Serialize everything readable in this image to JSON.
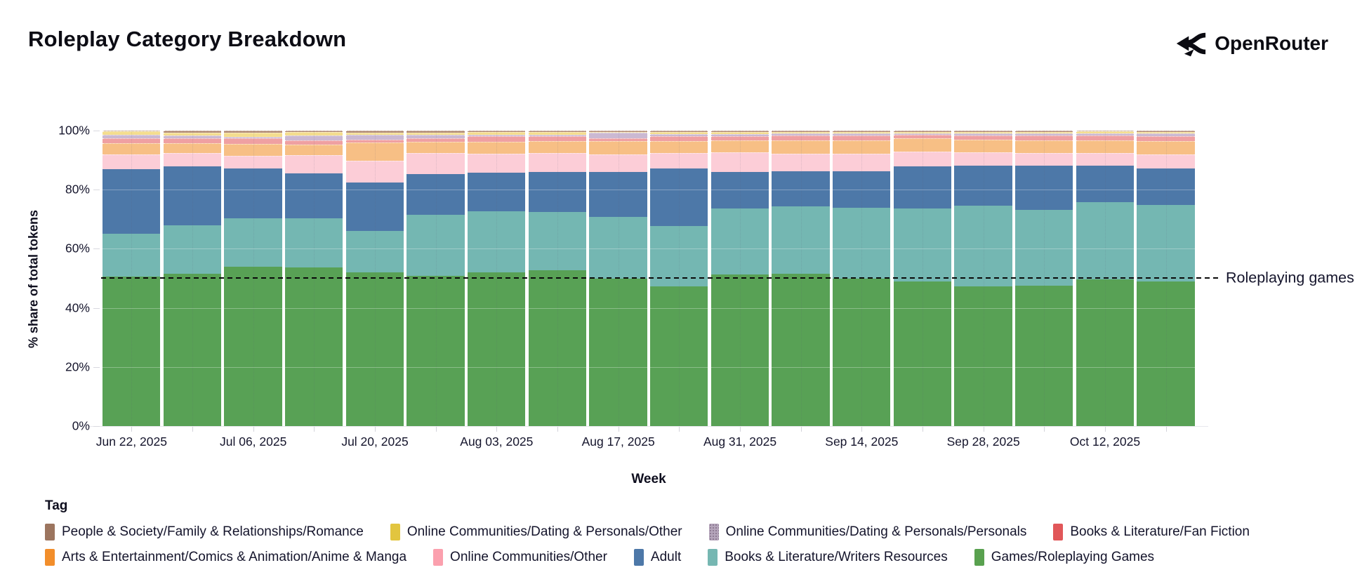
{
  "header": {
    "title": "Roleplay Category Breakdown",
    "brand": "OpenRouter"
  },
  "annotation": {
    "label": "Roleplaying games",
    "y": 50
  },
  "legend": {
    "title": "Tag",
    "rows": [
      [
        "romance",
        "dating_other",
        "dating_personals",
        "fan_fiction"
      ],
      [
        "anime_manga",
        "communities_other",
        "adult",
        "writers_resources",
        "roleplaying_games"
      ]
    ]
  },
  "chart_data": {
    "type": "bar",
    "stacked": true,
    "title": "Roleplay Category Breakdown",
    "xlabel": "Week",
    "ylabel": "% share of total tokens",
    "ylim": [
      0,
      100
    ],
    "y_ticks": [
      0,
      20,
      40,
      60,
      80,
      100
    ],
    "y_tick_labels": [
      "0%",
      "20%",
      "40%",
      "60%",
      "80%",
      "100%"
    ],
    "grid": "subtle-horizontal",
    "legend_position": "bottom",
    "annotation_line": {
      "value": 50,
      "style": "dashed",
      "label": "Roleplaying games"
    },
    "categories": [
      "Jun 22, 2025",
      "Jun 29, 2025",
      "Jul 06, 2025",
      "Jul 13, 2025",
      "Jul 20, 2025",
      "Jul 27, 2025",
      "Aug 03, 2025",
      "Aug 10, 2025",
      "Aug 17, 2025",
      "Aug 24, 2025",
      "Aug 31, 2025",
      "Sep 07, 2025",
      "Sep 14, 2025",
      "Sep 21, 2025",
      "Sep 28, 2025",
      "Oct 05, 2025",
      "Oct 12, 2025",
      "Oct 19, 2025"
    ],
    "x_axis_labeled_ticks": [
      "Jun 22, 2025",
      "Jul 06, 2025",
      "Jul 20, 2025",
      "Aug 03, 2025",
      "Aug 17, 2025",
      "Aug 31, 2025",
      "Sep 14, 2025",
      "Sep 28, 2025",
      "Oct 12, 2025"
    ],
    "series": [
      {
        "key": "roleplaying_games",
        "name": "Games/Roleplaying Games",
        "bar_color": "#58a155",
        "legend_color": "#59a14f",
        "thin": false,
        "values": [
          50.5,
          51.5,
          54.0,
          53.8,
          52.0,
          50.8,
          52.0,
          52.7,
          50.0,
          47.2,
          51.4,
          51.5,
          50.0,
          49.0,
          47.2,
          47.6,
          49.6,
          49.0
        ]
      },
      {
        "key": "writers_resources",
        "name": "Books & Literature/Writers Resources",
        "bar_color": "#74b7b2",
        "legend_color": "#76b7b2",
        "thin": false,
        "values": [
          14.5,
          16.5,
          16.2,
          16.6,
          14.0,
          20.7,
          20.8,
          19.8,
          20.7,
          20.6,
          22.3,
          22.8,
          23.9,
          24.7,
          27.5,
          25.6,
          26.2,
          25.8
        ]
      },
      {
        "key": "adult",
        "name": "Adult",
        "bar_color": "#4d78a8",
        "legend_color": "#4d78a8",
        "thin": false,
        "values": [
          22.0,
          19.8,
          17.0,
          15.1,
          16.4,
          13.8,
          13.0,
          13.6,
          15.3,
          19.4,
          12.4,
          11.9,
          12.4,
          14.1,
          13.4,
          14.9,
          12.3,
          12.4
        ]
      },
      {
        "key": "communities_other",
        "name": "Online Communities/Other",
        "bar_color": "#fccdd7",
        "legend_color": "#fba0ae",
        "thin": true,
        "values": [
          5.0,
          4.5,
          4.3,
          6.2,
          7.4,
          7.0,
          6.4,
          6.3,
          5.9,
          5.1,
          6.6,
          5.9,
          5.9,
          5.1,
          4.6,
          4.4,
          4.4,
          4.7
        ]
      },
      {
        "key": "anime_manga",
        "name": "Arts & Entertainment/Comics & Animation/Anime & Manga",
        "bar_color": "#f7bf85",
        "legend_color": "#f28e2b",
        "thin": true,
        "values": [
          3.7,
          3.4,
          4.0,
          3.5,
          6.1,
          4.0,
          4.1,
          4.1,
          4.6,
          4.2,
          4.1,
          4.6,
          4.6,
          4.4,
          4.3,
          4.2,
          4.3,
          4.6
        ]
      },
      {
        "key": "fan_fiction",
        "name": "Books & Literature/Fan Fiction",
        "bar_color": "#efa0a2",
        "legend_color": "#e15759",
        "thin": true,
        "values": [
          1.8,
          1.7,
          1.8,
          1.4,
          1.0,
          1.2,
          1.7,
          1.5,
          0.9,
          1.5,
          1.4,
          1.7,
          1.5,
          1.2,
          1.4,
          1.6,
          1.6,
          1.7
        ]
      },
      {
        "key": "dating_personals",
        "name": "Online Communities/Dating & Personals/Personals",
        "bar_color": "#cbb9d2",
        "legend_color": "#b5a5bb",
        "thin": true,
        "values": [
          1.1,
          0.9,
          0.7,
          1.7,
          1.6,
          1.0,
          0.7,
          0.7,
          1.8,
          0.8,
          0.7,
          0.6,
          0.7,
          0.6,
          0.6,
          0.7,
          0.7,
          0.8
        ]
      },
      {
        "key": "dating_other",
        "name": "Online Communities/Dating & Personals/Other",
        "bar_color": "#f4dd8e",
        "legend_color": "#e2c53f",
        "thin": true,
        "values": [
          1.1,
          1.0,
          1.4,
          1.2,
          0.9,
          0.9,
          0.8,
          0.8,
          0.4,
          0.7,
          0.7,
          0.6,
          0.6,
          0.5,
          0.6,
          0.6,
          0.6,
          0.6
        ]
      },
      {
        "key": "romance",
        "name": "People & Society/Family & Relationships/Romance",
        "bar_color": "#b18a74",
        "legend_color": "#9c755f",
        "thin": true,
        "values": [
          0.3,
          0.7,
          0.6,
          0.5,
          0.6,
          0.6,
          0.5,
          0.5,
          0.4,
          0.5,
          0.4,
          0.4,
          0.4,
          0.4,
          0.4,
          0.4,
          0.3,
          0.4
        ]
      }
    ]
  }
}
